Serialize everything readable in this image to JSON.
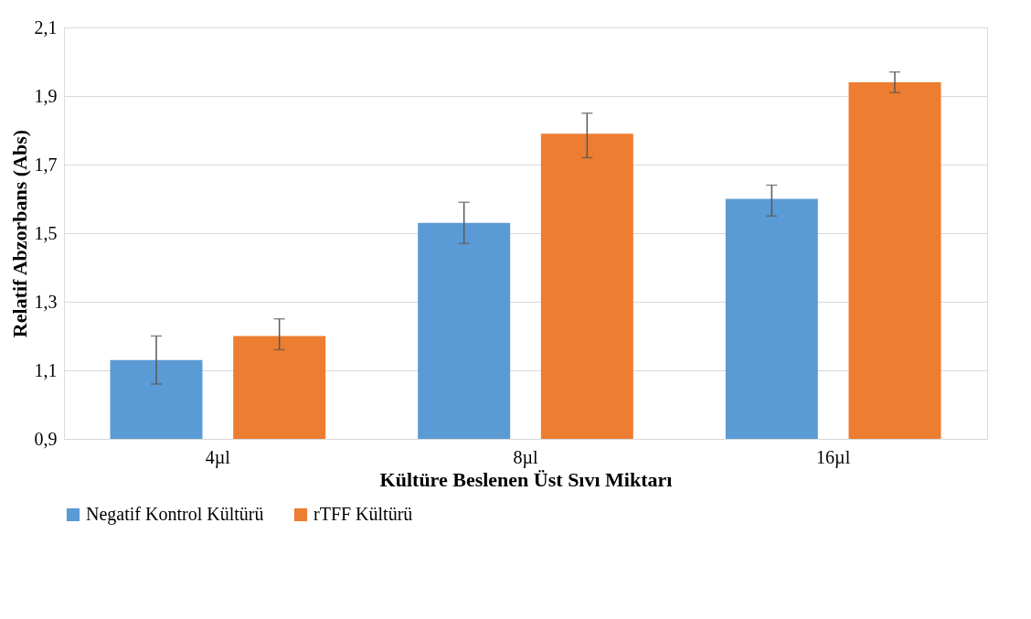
{
  "chart_data": {
    "type": "bar",
    "xlabel": "Kültüre Beslenen Üst Sıvı Miktarı",
    "ylabel": "Relatif Abzorbans (Abs)",
    "categories": [
      "4µl",
      "8µl",
      "16µl"
    ],
    "series": [
      {
        "name": "Negatif Kontrol Kültürü",
        "color": "#5b9bd5",
        "values": [
          1.13,
          1.53,
          1.6
        ],
        "errors": [
          [
            1.06,
            1.2
          ],
          [
            1.47,
            1.59
          ],
          [
            1.55,
            1.64
          ]
        ]
      },
      {
        "name": "rTFF Kültürü",
        "color": "#ed7d31",
        "values": [
          1.2,
          1.79,
          1.94
        ],
        "errors": [
          [
            1.16,
            1.25
          ],
          [
            1.72,
            1.85
          ],
          [
            1.91,
            1.97
          ]
        ]
      }
    ],
    "ylim": [
      0.9,
      2.1
    ],
    "yticks": [
      {
        "value": 0.9,
        "label": "0,9"
      },
      {
        "value": 1.1,
        "label": "1,1"
      },
      {
        "value": 1.3,
        "label": "1,3"
      },
      {
        "value": 1.5,
        "label": "1,5"
      },
      {
        "value": 1.7,
        "label": "1,7"
      },
      {
        "value": 1.9,
        "label": "1,9"
      },
      {
        "value": 2.1,
        "label": "2,1"
      }
    ],
    "grid": "y",
    "legend": "bottom"
  }
}
